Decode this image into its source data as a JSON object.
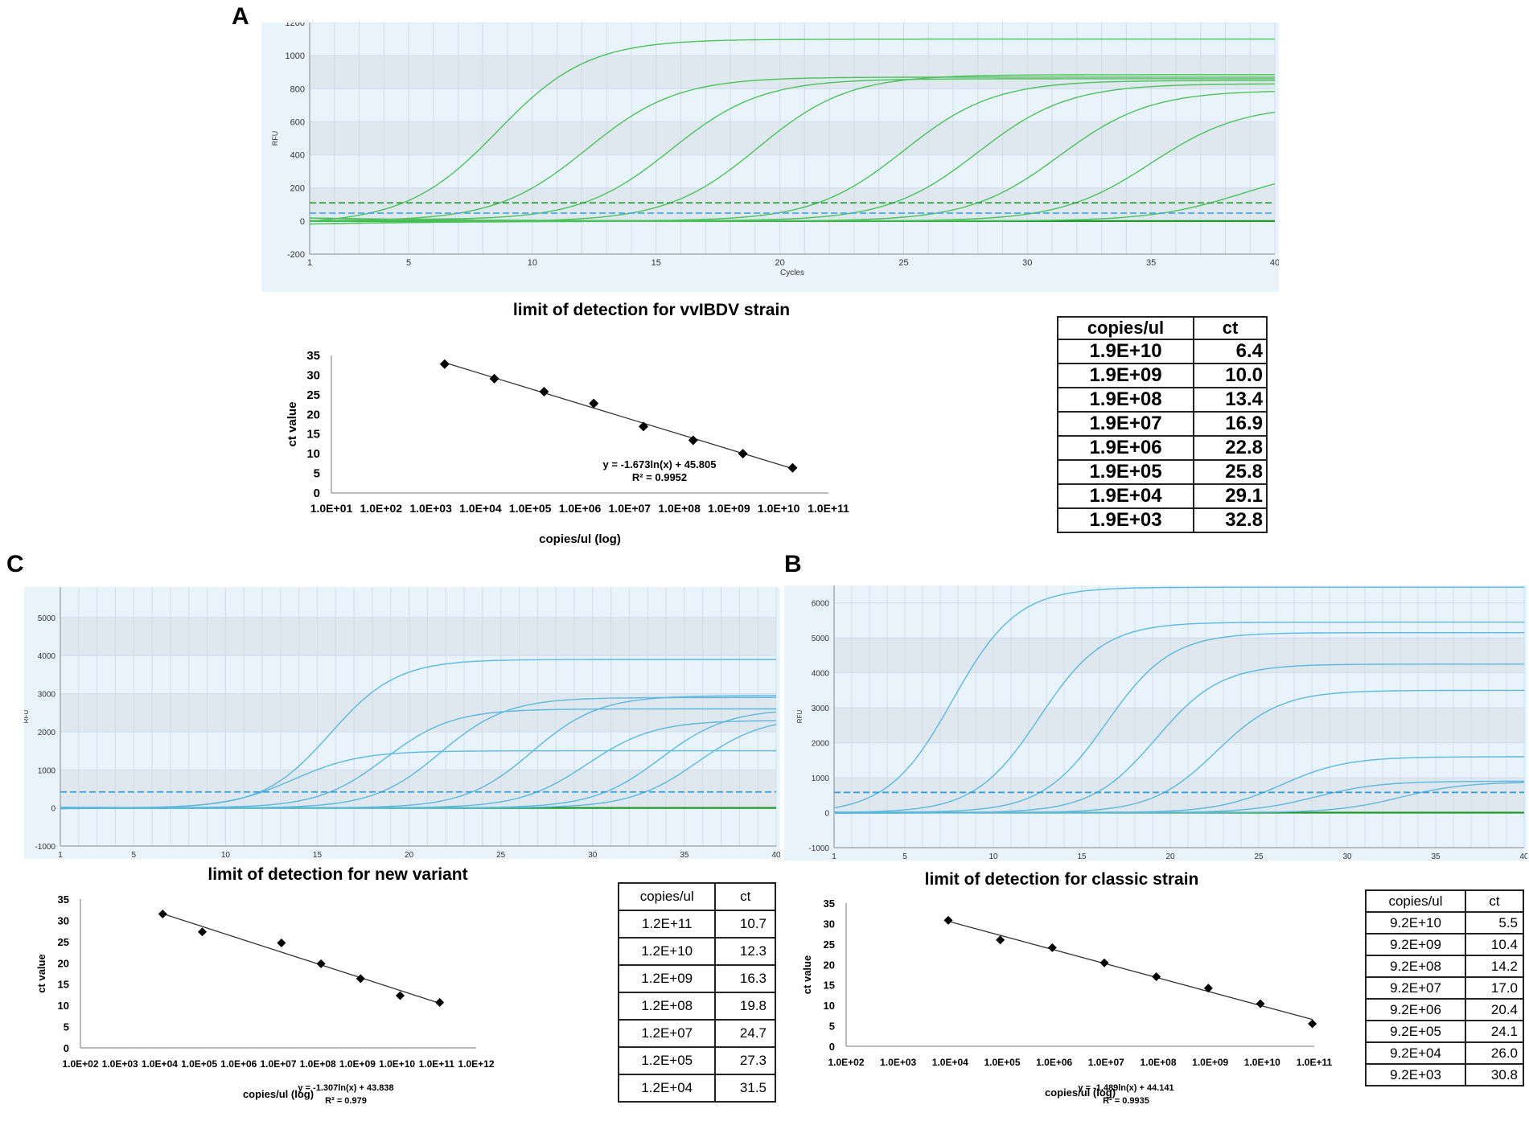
{
  "panels": {
    "A": {
      "letter": "A",
      "title": "limit of detection for vvIBDV strain",
      "amplification": {
        "type": "line",
        "ylabel": "RFU",
        "xlabel": "Cycles",
        "x_ticks": [
          1,
          5,
          10,
          15,
          20,
          25,
          30,
          35,
          40
        ],
        "y_ticks": [
          -200,
          0,
          200,
          400,
          600,
          800,
          1000,
          1200
        ],
        "xlim": [
          1,
          40
        ],
        "ylim": [
          -200,
          1200
        ],
        "threshold_values": [
          110,
          48
        ],
        "curve_color": "#4cc25a",
        "threshold_colors": [
          "#2e9e3a",
          "#4aa8e0"
        ],
        "baseline_color": "#1f9a2a",
        "curves": [
          {
            "ct": 6.4,
            "plateau": 1100
          },
          {
            "ct": 10.0,
            "plateau": 870
          },
          {
            "ct": 13.4,
            "plateau": 860
          },
          {
            "ct": 16.9,
            "plateau": 885
          },
          {
            "ct": 22.8,
            "plateau": 850
          },
          {
            "ct": 25.8,
            "plateau": 830
          },
          {
            "ct": 29.1,
            "plateau": 790
          },
          {
            "ct": 32.8,
            "plateau": 700
          },
          {
            "ct": 36.5,
            "plateau": 335
          }
        ]
      },
      "standard_curve": {
        "type": "scatter",
        "xlabel": "copies/ul (log)",
        "ylabel": "ct value",
        "x_tick_labels": [
          "1.0E+01",
          "1.0E+02",
          "1.0E+03",
          "1.0E+04",
          "1.0E+05",
          "1.0E+06",
          "1.0E+07",
          "1.0E+08",
          "1.0E+09",
          "1.0E+10",
          "1.0E+11"
        ],
        "x_log_range": [
          1,
          11
        ],
        "y_ticks": [
          0,
          5,
          10,
          15,
          20,
          25,
          30,
          35
        ],
        "ylim": [
          0,
          35
        ],
        "equation": "y = -1.673ln(x) + 45.805",
        "r2": "R² = 0.9952",
        "fit": {
          "slope": -1.673,
          "intercept": 45.805
        },
        "points": [
          {
            "x": 19000000000.0,
            "y": 6.4
          },
          {
            "x": 1900000000.0,
            "y": 10.0
          },
          {
            "x": 190000000.0,
            "y": 13.4
          },
          {
            "x": 19000000.0,
            "y": 16.9
          },
          {
            "x": 1900000.0,
            "y": 22.8
          },
          {
            "x": 190000.0,
            "y": 25.8
          },
          {
            "x": 19000.0,
            "y": 29.1
          },
          {
            "x": 1900.0,
            "y": 32.8
          }
        ]
      },
      "table": {
        "header": [
          "copies/ul",
          "ct"
        ],
        "rows": [
          [
            "1.9E+10",
            "6.4"
          ],
          [
            "1.9E+09",
            "10.0"
          ],
          [
            "1.9E+08",
            "13.4"
          ],
          [
            "1.9E+07",
            "16.9"
          ],
          [
            "1.9E+06",
            "22.8"
          ],
          [
            "1.9E+05",
            "25.8"
          ],
          [
            "1.9E+04",
            "29.1"
          ],
          [
            "1.9E+03",
            "32.8"
          ]
        ]
      }
    },
    "C": {
      "letter": "C",
      "title": "limit of detection for new variant",
      "amplification": {
        "type": "line",
        "ylabel": "RFU",
        "xlabel": "Cycles",
        "x_ticks": [
          1,
          5,
          10,
          15,
          20,
          25,
          30,
          35,
          40
        ],
        "y_ticks": [
          -1000,
          0,
          1000,
          2000,
          3000,
          4000,
          5000
        ],
        "xlim": [
          1,
          40
        ],
        "ylim": [
          -1000,
          5800
        ],
        "threshold_values": [
          420
        ],
        "curve_color": "#5bb8e0",
        "threshold_colors": [
          "#3a9ed6"
        ],
        "baseline_color": "#1f9a2a",
        "curves": [
          {
            "ct": 11.5,
            "plateau": 1500
          },
          {
            "ct": 13.5,
            "plateau": 3900
          },
          {
            "ct": 16.5,
            "plateau": 2600
          },
          {
            "ct": 19.5,
            "plateau": 2900
          },
          {
            "ct": 24.5,
            "plateau": 2950
          },
          {
            "ct": 27.5,
            "plateau": 2300
          },
          {
            "ct": 31.5,
            "plateau": 2600
          },
          {
            "ct": 33.5,
            "plateau": 2400
          }
        ]
      },
      "standard_curve": {
        "type": "scatter",
        "xlabel": "copies/ul (log)",
        "ylabel": "ct value",
        "x_tick_labels": [
          "1.0E+02",
          "1.0E+03",
          "1.0E+04",
          "1.0E+05",
          "1.0E+06",
          "1.0E+07",
          "1.0E+08",
          "1.0E+09",
          "1.0E+10",
          "1.0E+11",
          "1.0E+12"
        ],
        "x_log_range": [
          2,
          12
        ],
        "y_ticks": [
          0,
          5,
          10,
          15,
          20,
          25,
          30,
          35
        ],
        "ylim": [
          0,
          35
        ],
        "equation": "y = -1.307ln(x) + 43.838",
        "r2": "R² = 0.979",
        "fit": {
          "slope": -1.307,
          "intercept": 43.838
        },
        "points": [
          {
            "x": 120000000000.0,
            "y": 10.7
          },
          {
            "x": 12000000000.0,
            "y": 12.3
          },
          {
            "x": 1200000000.0,
            "y": 16.3
          },
          {
            "x": 120000000.0,
            "y": 19.8
          },
          {
            "x": 12000000.0,
            "y": 24.7
          },
          {
            "x": 120000.0,
            "y": 27.3
          },
          {
            "x": 12000.0,
            "y": 31.5
          }
        ]
      },
      "table": {
        "header": [
          "copies/ul",
          "ct"
        ],
        "rows": [
          [
            "1.2E+11",
            "10.7"
          ],
          [
            "1.2E+10",
            "12.3"
          ],
          [
            "1.2E+09",
            "16.3"
          ],
          [
            "1.2E+08",
            "19.8"
          ],
          [
            "1.2E+07",
            "24.7"
          ],
          [
            "1.2E+05",
            "27.3"
          ],
          [
            "1.2E+04",
            "31.5"
          ]
        ]
      }
    },
    "B": {
      "letter": "B",
      "title": "limit of detection for classic strain",
      "amplification": {
        "type": "line",
        "ylabel": "RFU",
        "xlabel": "Cycles",
        "x_ticks": [
          1,
          5,
          10,
          15,
          20,
          25,
          30,
          35,
          40
        ],
        "y_ticks": [
          -1000,
          0,
          1000,
          2000,
          3000,
          4000,
          5000,
          6000
        ],
        "xlim": [
          1,
          40
        ],
        "ylim": [
          -1000,
          6500
        ],
        "threshold_values": [
          580
        ],
        "curve_color": "#5bb8e0",
        "threshold_colors": [
          "#3a9ed6"
        ],
        "baseline_color": "#1f9a2a",
        "curves": [
          {
            "ct": 5.5,
            "plateau": 6450
          },
          {
            "ct": 10.4,
            "plateau": 5450
          },
          {
            "ct": 14.2,
            "plateau": 5150
          },
          {
            "ct": 17.0,
            "plateau": 4250
          },
          {
            "ct": 20.4,
            "plateau": 3500
          },
          {
            "ct": 24.1,
            "plateau": 1600
          },
          {
            "ct": 26.0,
            "plateau": 900
          },
          {
            "ct": 30.8,
            "plateau": 880
          }
        ]
      },
      "standard_curve": {
        "type": "scatter",
        "xlabel": "copies/ul (log)",
        "ylabel": "ct value",
        "x_tick_labels": [
          "1.0E+02",
          "1.0E+03",
          "1.0E+04",
          "1.0E+05",
          "1.0E+06",
          "1.0E+07",
          "1.0E+08",
          "1.0E+09",
          "1.0E+10",
          "1.0E+11"
        ],
        "x_log_range": [
          2,
          11
        ],
        "y_ticks": [
          0,
          5,
          10,
          15,
          20,
          25,
          30,
          35
        ],
        "ylim": [
          0,
          35
        ],
        "equation": "y = -1.489ln(x) + 44.141",
        "r2": "R² = 0.9935",
        "fit": {
          "slope": -1.489,
          "intercept": 44.141
        },
        "points": [
          {
            "x": 92000000000.0,
            "y": 5.5
          },
          {
            "x": 9200000000.0,
            "y": 10.4
          },
          {
            "x": 920000000.0,
            "y": 14.2
          },
          {
            "x": 92000000.0,
            "y": 17.0
          },
          {
            "x": 9200000.0,
            "y": 20.4
          },
          {
            "x": 920000.0,
            "y": 24.1
          },
          {
            "x": 92000.0,
            "y": 26.0
          },
          {
            "x": 9200.0,
            "y": 30.8
          }
        ]
      },
      "table": {
        "header": [
          "copies/ul",
          "ct"
        ],
        "rows": [
          [
            "9.2E+10",
            "5.5"
          ],
          [
            "9.2E+09",
            "10.4"
          ],
          [
            "9.2E+08",
            "14.2"
          ],
          [
            "9.2E+07",
            "17.0"
          ],
          [
            "9.2E+06",
            "20.4"
          ],
          [
            "9.2E+05",
            "24.1"
          ],
          [
            "9.2E+04",
            "26.0"
          ],
          [
            "9.2E+03",
            "30.8"
          ]
        ]
      }
    }
  },
  "chart_data": [
    {
      "type": "line",
      "title": "",
      "xlabel": "Cycles",
      "ylabel": "RFU",
      "xlim": [
        1,
        40
      ],
      "ylim": [
        -200,
        1200
      ],
      "panel": "A"
    },
    {
      "type": "scatter",
      "title": "limit of detection for vvIBDV strain",
      "xlabel": "copies/ul (log)",
      "ylabel": "ct value",
      "x": [
        19000000000.0,
        1900000000.0,
        190000000.0,
        19000000.0,
        1900000.0,
        190000.0,
        19000.0,
        1900.0
      ],
      "y": [
        6.4,
        10.0,
        13.4,
        16.9,
        22.8,
        25.8,
        29.1,
        32.8
      ],
      "ylim": [
        0,
        35
      ]
    },
    {
      "type": "line",
      "title": "",
      "xlabel": "Cycles",
      "ylabel": "RFU",
      "xlim": [
        1,
        40
      ],
      "ylim": [
        -1000,
        5800
      ],
      "panel": "C"
    },
    {
      "type": "scatter",
      "title": "limit of detection for new variant",
      "xlabel": "copies/ul (log)",
      "ylabel": "ct value",
      "x": [
        120000000000.0,
        12000000000.0,
        1200000000.0,
        120000000.0,
        12000000.0,
        120000.0,
        12000.0
      ],
      "y": [
        10.7,
        12.3,
        16.3,
        19.8,
        24.7,
        27.3,
        31.5
      ],
      "ylim": [
        0,
        35
      ]
    },
    {
      "type": "line",
      "title": "",
      "xlabel": "Cycles",
      "ylabel": "RFU",
      "xlim": [
        1,
        40
      ],
      "ylim": [
        -1000,
        6500
      ],
      "panel": "B"
    },
    {
      "type": "scatter",
      "title": "limit of detection for classic strain",
      "xlabel": "copies/ul (log)",
      "ylabel": "ct value",
      "x": [
        92000000000.0,
        9200000000.0,
        920000000.0,
        92000000.0,
        9200000.0,
        920000.0,
        92000.0,
        9200.0
      ],
      "y": [
        5.5,
        10.4,
        14.2,
        17.0,
        20.4,
        24.1,
        26.0,
        30.8
      ],
      "ylim": [
        0,
        35
      ]
    }
  ]
}
